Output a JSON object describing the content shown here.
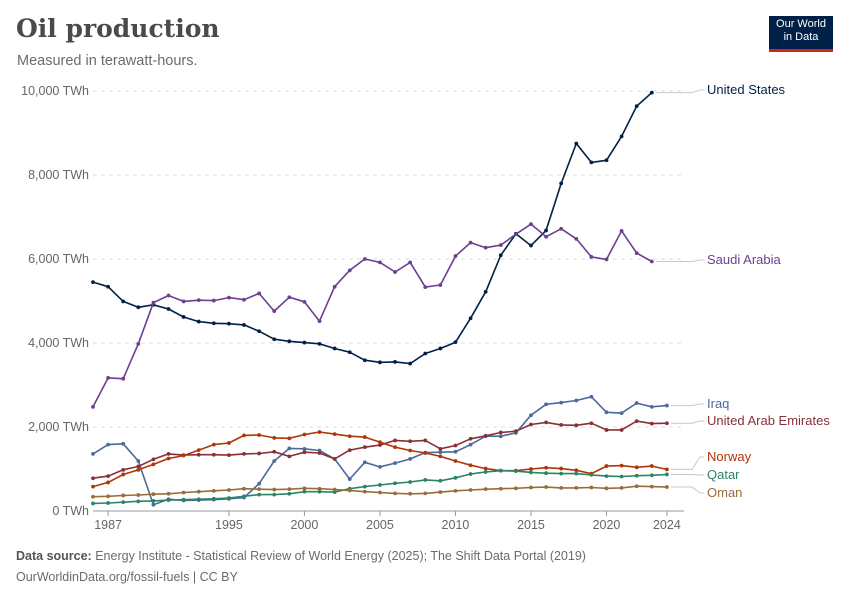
{
  "header": {
    "title": "Oil production",
    "subtitle": "Measured in terawatt-hours.",
    "logo_line1": "Our World",
    "logo_line2": "in Data"
  },
  "footer": {
    "source_label": "Data source:",
    "source_text": "Energy Institute - Statistical Review of World Energy (2025); The Shift Data Portal (2019)",
    "url_text": "OurWorldinData.org/fossil-fuels | CC BY"
  },
  "chart_data": {
    "type": "line",
    "title": "Oil production",
    "subtitle": "Measured in terawatt-hours.",
    "xlabel": "",
    "ylabel": "",
    "xlim": [
      1986,
      2025
    ],
    "ylim": [
      0,
      10000
    ],
    "grid": true,
    "legend": "right (inline labels at line ends)",
    "x": [
      1986,
      1987,
      1988,
      1989,
      1990,
      1991,
      1992,
      1993,
      1994,
      1995,
      1996,
      1997,
      1998,
      1999,
      2000,
      2001,
      2002,
      2003,
      2004,
      2005,
      2006,
      2007,
      2008,
      2009,
      2010,
      2011,
      2012,
      2013,
      2014,
      2015,
      2016,
      2017,
      2018,
      2019,
      2020,
      2021,
      2022,
      2023,
      2024
    ],
    "y_ticks": [
      0,
      2000,
      4000,
      6000,
      8000,
      10000
    ],
    "y_tick_labels": [
      "0 TWh",
      "2,000 TWh",
      "4,000 TWh",
      "6,000 TWh",
      "8,000 TWh",
      "10,000 TWh"
    ],
    "x_ticks": [
      1987,
      1995,
      2000,
      2005,
      2010,
      2015,
      2020,
      2024
    ],
    "x_tick_labels": [
      "1987",
      "1995",
      "2000",
      "2005",
      "2010",
      "2015",
      "2020",
      "2024"
    ],
    "series": [
      {
        "name": "United States",
        "color": "#002147",
        "values": [
          5450,
          5340,
          4990,
          4850,
          4910,
          4810,
          4620,
          4510,
          4470,
          4460,
          4430,
          4280,
          4090,
          4040,
          4010,
          3980,
          3870,
          3780,
          3590,
          3540,
          3550,
          3510,
          3750,
          3870,
          4020,
          4590,
          5220,
          6090,
          6600,
          6320,
          6680,
          7800,
          8750,
          8300,
          8350,
          8920,
          9640,
          9960,
          null
        ]
      },
      {
        "name": "Saudi Arabia",
        "color": "#6d3e91",
        "values": [
          2480,
          3170,
          3150,
          3980,
          4960,
          5130,
          4990,
          5020,
          5010,
          5080,
          5030,
          5180,
          4760,
          5090,
          4980,
          4520,
          5340,
          5730,
          6000,
          5920,
          5690,
          5920,
          5330,
          5380,
          6070,
          6390,
          6270,
          6330,
          6590,
          6830,
          6530,
          6720,
          6480,
          6050,
          5990,
          6670,
          6140,
          5940,
          null
        ]
      },
      {
        "name": "Iraq",
        "color": "#4c6a9c",
        "values": [
          1360,
          1580,
          1600,
          1190,
          150,
          280,
          250,
          260,
          270,
          290,
          320,
          650,
          1190,
          1490,
          1480,
          1440,
          1240,
          760,
          1160,
          1050,
          1140,
          1240,
          1390,
          1400,
          1410,
          1580,
          1780,
          1780,
          1860,
          2280,
          2540,
          2580,
          2630,
          2720,
          2350,
          2330,
          2570,
          2480,
          2510
        ]
      },
      {
        "name": "United Arab Emirates",
        "color": "#883039",
        "values": [
          780,
          830,
          980,
          1060,
          1230,
          1360,
          1330,
          1340,
          1340,
          1330,
          1360,
          1370,
          1410,
          1300,
          1400,
          1380,
          1240,
          1450,
          1520,
          1570,
          1680,
          1660,
          1680,
          1480,
          1560,
          1720,
          1790,
          1870,
          1900,
          2060,
          2110,
          2050,
          2040,
          2090,
          1930,
          1930,
          2140,
          2080,
          2090
        ]
      },
      {
        "name": "Norway",
        "color": "#b13507",
        "values": [
          580,
          680,
          870,
          980,
          1110,
          1250,
          1320,
          1450,
          1580,
          1620,
          1800,
          1810,
          1740,
          1730,
          1820,
          1880,
          1830,
          1780,
          1760,
          1640,
          1520,
          1440,
          1380,
          1300,
          1190,
          1090,
          1010,
          960,
          960,
          1000,
          1030,
          1010,
          970,
          890,
          1070,
          1080,
          1040,
          1070,
          990
        ]
      },
      {
        "name": "Qatar",
        "color": "#2c8465",
        "values": [
          180,
          190,
          210,
          230,
          240,
          260,
          270,
          280,
          290,
          310,
          350,
          390,
          390,
          410,
          460,
          460,
          450,
          530,
          580,
          620,
          660,
          690,
          740,
          720,
          790,
          880,
          930,
          960,
          950,
          920,
          900,
          890,
          890,
          860,
          830,
          820,
          840,
          850,
          870
        ]
      },
      {
        "name": "Oman",
        "color": "#996d39",
        "values": [
          340,
          350,
          370,
          380,
          400,
          410,
          440,
          460,
          480,
          500,
          530,
          520,
          510,
          520,
          540,
          530,
          510,
          490,
          460,
          440,
          420,
          410,
          420,
          450,
          480,
          500,
          520,
          530,
          540,
          560,
          570,
          550,
          550,
          560,
          540,
          550,
          590,
          580,
          570
        ]
      }
    ]
  }
}
